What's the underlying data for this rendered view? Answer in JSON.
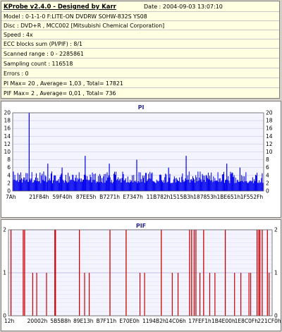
{
  "header": {
    "title": "KProbe v2.4.0 - Designed by Karr",
    "date": "Date : 2004-09-03 13:07:10"
  },
  "info": {
    "lines": [
      "Model : 0-1-1-0 F:LITE-ON DVDRW SOHW-832S  YS08",
      "Disc : DVD+R , MCC002 [Mitsubishi Chemical Corporation]",
      "Speed : 4x",
      "ECC blocks sum (PI/PIF) : 8/1",
      "Scanned range : 0 - 2285861",
      "Sampling count : 116518",
      "Errors : 0",
      "PI Max= 20 , Average= 1,03 , Total= 17821",
      "PIF Max= 2 , Average= 0,01 , Total= 736"
    ]
  },
  "colors": {
    "pi_bars": "#0000ee",
    "pif_bars": "#cc0000",
    "panel_bg": "#ffffe1",
    "window_bg": "#d4d0c8"
  },
  "chart_data": [
    {
      "type": "bar",
      "title": "PI",
      "ylim": [
        0,
        20
      ],
      "yticks": [
        0,
        2,
        4,
        6,
        8,
        10,
        12,
        14,
        16,
        18,
        20
      ],
      "x_tick_labels": [
        "7Ah",
        "21F84h",
        "59F40h",
        "87EE5h",
        "B7271h",
        "E7347h",
        "11B782h",
        "1515B3h",
        "187853h",
        "1BE651h",
        "1F552Fh"
      ],
      "xlim": [
        0,
        2285861
      ],
      "grid": true,
      "peak_values": [
        {
          "x": 150000,
          "y": 20
        },
        {
          "x": 660000,
          "y": 9
        },
        {
          "x": 1580000,
          "y": 9
        },
        {
          "x": 1130000,
          "y": 8
        },
        {
          "x": 880000,
          "y": 7
        },
        {
          "x": 320000,
          "y": 7
        },
        {
          "x": 1950000,
          "y": 7
        },
        {
          "x": 2070000,
          "y": 6
        },
        {
          "x": 450000,
          "y": 6
        },
        {
          "x": 1420000,
          "y": 6
        }
      ],
      "baseline_level": 2,
      "typical_max": 5
    },
    {
      "type": "bar",
      "title": "PIF",
      "ylim": [
        0,
        2
      ],
      "yticks": [
        0,
        1,
        2
      ],
      "x_tick_labels": [
        "12h",
        "20002h",
        "5B5B8h",
        "89E13h",
        "B7F11h",
        "E70E0h",
        "1194B2h",
        "14C06h",
        "17FEF1h",
        "1B4E00h",
        "1E8C0Fh",
        "221CF0h"
      ],
      "xlim": [
        0,
        2285861
      ],
      "grid": true,
      "bars_at_2": [
        22000,
        128000,
        140000,
        402000,
        408000,
        615000,
        880000,
        1020000,
        1325000,
        1570000,
        1588000,
        1610000,
        1625000,
        1692000,
        1880000,
        2155000,
        2170000,
        2180000,
        2200000,
        2245000
      ],
      "bars_at_1": [
        210000,
        245000,
        330000,
        660000,
        700000,
        1140000,
        1180000,
        1420000,
        1470000,
        1660000,
        1745000,
        1790000,
        1960000,
        2015000,
        2085000,
        2100000,
        2260000
      ]
    }
  ]
}
